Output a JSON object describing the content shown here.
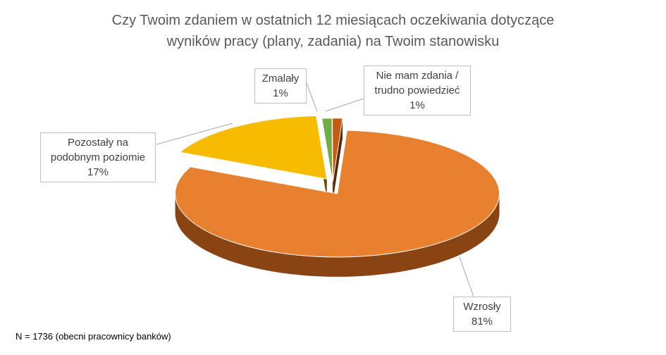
{
  "chart_data": {
    "type": "pie",
    "title_line1": "Czy Twoim zdaniem w ostatnich 12 miesiącach oczekiwania dotyczące",
    "title_line2": "wyników pracy (plany, zadania) na Twoim stanowisku",
    "slices": [
      {
        "label_lines": [
          "Wzrosły"
        ],
        "value": 81,
        "value_label": "81%",
        "color": "#e7812f",
        "side_color": "#8a4414"
      },
      {
        "label_lines": [
          "Pozostały na",
          "podobnym poziomie"
        ],
        "value": 17,
        "value_label": "17%",
        "color": "#f7bb00",
        "side_color": "#6b5000"
      },
      {
        "label_lines": [
          "Zmalały"
        ],
        "value": 1,
        "value_label": "1%",
        "color": "#70ad47",
        "side_color": "#2f4d1e"
      },
      {
        "label_lines": [
          "Nie mam zdania /",
          "trudno powiedzieć"
        ],
        "value": 1,
        "value_label": "1%",
        "color": "#c55a11",
        "side_color": "#5b2a08"
      }
    ]
  },
  "footnote": "N = 1736 (obecni pracownicy banków)"
}
